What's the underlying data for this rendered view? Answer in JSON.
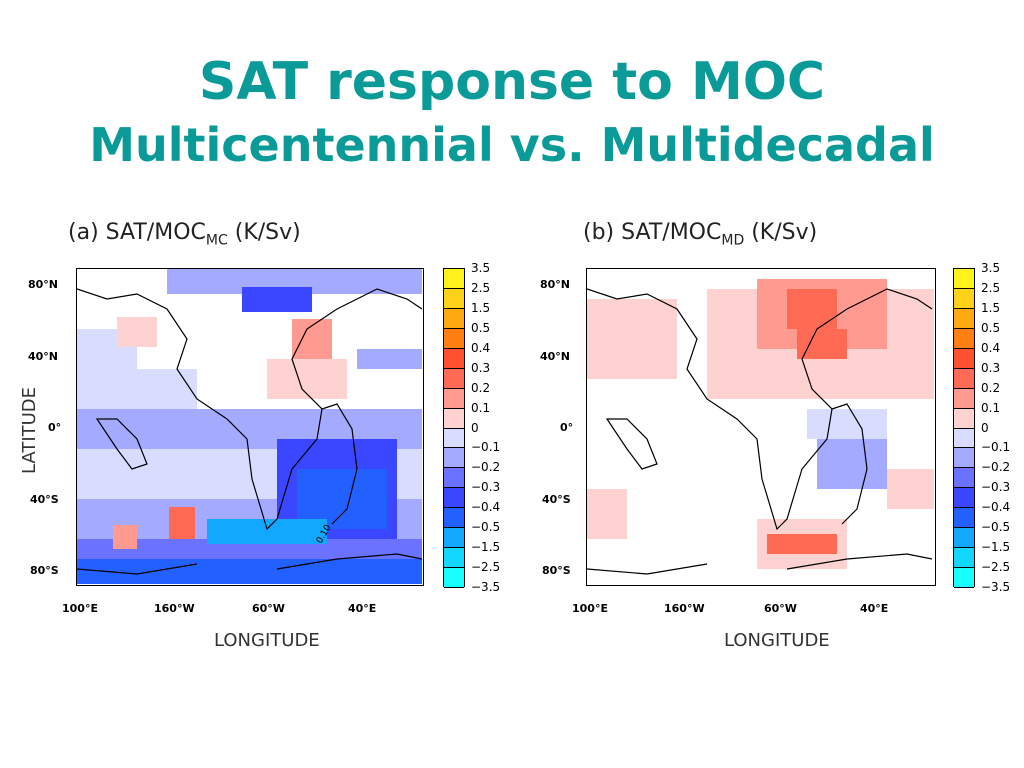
{
  "title": {
    "line1": "SAT response to MOC",
    "line2": "Multicentennial vs. Multidecadal"
  },
  "chart_data": [
    {
      "type": "heatmap",
      "panel": "a",
      "title": {
        "prefix": "(a) SAT/MOC",
        "subscript": "MC",
        "suffix": "(K/Sv)"
      },
      "xlabel": "LONGITUDE",
      "ylabel": "LATITUDE",
      "x_ticks": [
        "100°E",
        "160°W",
        "60°W",
        "40°E"
      ],
      "y_ticks": [
        "80°N",
        "40°N",
        "0°",
        "40°S",
        "80°S"
      ],
      "contour_label": "0.10",
      "colorbar": {
        "levels": [
          "3.5",
          "2.5",
          "1.5",
          "0.5",
          "0.4",
          "0.3",
          "0.2",
          "0.1",
          "0",
          "−0.1",
          "−0.2",
          "−0.3",
          "−0.4",
          "−0.5",
          "−1.5",
          "−2.5",
          "−3.5"
        ],
        "colors": [
          "#fff21a",
          "#ffd21a",
          "#ffaa10",
          "#ff8010",
          "#ff5030",
          "#ff6a55",
          "#ff9a90",
          "#ffd2d2",
          "#ffffff",
          "#d8dcff",
          "#a4aaff",
          "#6a72ff",
          "#3a46ff",
          "#2260ff",
          "#12a8ff",
          "#12d8ff",
          "#18ffff"
        ]
      }
    },
    {
      "type": "heatmap",
      "panel": "b",
      "title": {
        "prefix": "(b) SAT/MOC",
        "subscript": "MD",
        "suffix": "(K/Sv)"
      },
      "xlabel": "LONGITUDE",
      "ylabel": "",
      "x_ticks": [
        "100°E",
        "160°W",
        "60°W",
        "40°E"
      ],
      "y_ticks": [
        "80°N",
        "40°N",
        "0°",
        "40°S",
        "80°S"
      ],
      "colorbar": {
        "levels": [
          "3.5",
          "2.5",
          "1.5",
          "0.5",
          "0.4",
          "0.3",
          "0.2",
          "0.1",
          "0",
          "−0.1",
          "−0.2",
          "−0.3",
          "−0.4",
          "−0.5",
          "−1.5",
          "−2.5",
          "−3.5"
        ],
        "colors": [
          "#fff21a",
          "#ffd21a",
          "#ffaa10",
          "#ff8010",
          "#ff5030",
          "#ff6a55",
          "#ff9a90",
          "#ffd2d2",
          "#ffffff",
          "#d8dcff",
          "#a4aaff",
          "#6a72ff",
          "#3a46ff",
          "#2260ff",
          "#12a8ff",
          "#12d8ff",
          "#18ffff"
        ]
      }
    }
  ]
}
